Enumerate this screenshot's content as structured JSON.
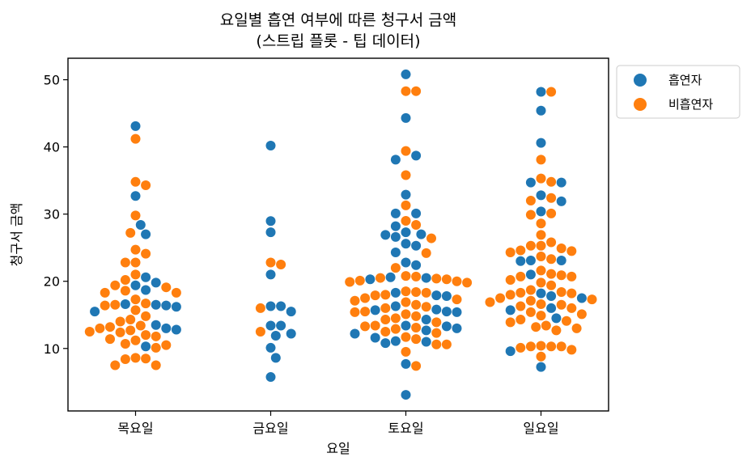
{
  "chart_data": {
    "type": "scatter",
    "style": "swarm",
    "title_line1": "요일별 흡연 여부에 따른 청구서 금액",
    "title_line2": "(스트립 플롯 - 팁 데이터)",
    "xlabel": "요일",
    "ylabel": "청구서 금액",
    "categories": [
      "목요일",
      "금요일",
      "토요일",
      "일요일"
    ],
    "ylim": [
      0.7,
      53.2
    ],
    "yticks": [
      10,
      20,
      30,
      40,
      50
    ],
    "grid": false,
    "legend_position": "outside-top-right",
    "series": [
      {
        "name": "흡연자",
        "color": "#1f77b4",
        "values": [
          [
            43.1,
            32.7,
            28.4,
            27.0,
            20.6,
            19.8,
            19.4,
            18.7,
            16.6,
            16.5,
            16.4,
            16.2,
            15.5,
            13.5,
            13.0,
            12.8,
            10.3
          ],
          [
            40.2,
            28.97,
            27.3,
            21.0,
            16.3,
            16.3,
            15.5,
            13.4,
            13.4,
            12.2,
            11.9,
            10.1,
            8.6,
            5.75
          ],
          [
            50.8,
            44.3,
            38.7,
            38.1,
            32.9,
            30.1,
            30.1,
            28.2,
            27.3,
            27.0,
            26.9,
            26.6,
            25.6,
            25.3,
            24.3,
            22.8,
            22.4,
            20.6,
            20.5,
            20.3,
            18.3,
            17.9,
            17.8,
            16.3,
            15.8,
            15.7,
            15.5,
            15.4,
            14.3,
            13.4,
            13.3,
            13.0,
            12.7,
            12.2,
            11.6,
            11.1,
            11.0,
            10.8,
            7.7,
            3.1
          ],
          [
            48.2,
            45.4,
            40.6,
            34.7,
            34.7,
            32.8,
            31.9,
            30.4,
            23.1,
            23.1,
            23.0,
            21.0,
            18.2,
            17.8,
            17.5,
            16.0,
            15.7,
            14.5,
            9.6,
            7.25
          ]
        ]
      },
      {
        "name": "비흡연자",
        "color": "#ff7f0e",
        "values": [
          [
            41.2,
            34.8,
            34.3,
            29.8,
            27.2,
            24.7,
            24.1,
            22.8,
            22.8,
            21.0,
            20.2,
            19.4,
            19.1,
            18.6,
            18.3,
            18.3,
            17.3,
            16.7,
            16.5,
            16.4,
            15.7,
            14.8,
            14.3,
            14.0,
            13.4,
            13.2,
            13.0,
            12.7,
            12.5,
            12.4,
            12.0,
            11.8,
            11.4,
            11.2,
            10.7,
            10.5,
            10.1,
            8.6,
            8.5,
            8.4,
            7.5,
            7.5
          ],
          [
            22.8,
            22.5,
            16.0,
            12.5
          ],
          [
            48.3,
            48.3,
            39.4,
            35.8,
            31.3,
            29.0,
            28.4,
            26.4,
            24.2,
            22.0,
            20.8,
            20.7,
            20.5,
            20.4,
            20.3,
            20.1,
            20.0,
            19.9,
            19.8,
            18.5,
            18.4,
            18.3,
            18.0,
            17.9,
            17.5,
            17.3,
            17.1,
            16.9,
            16.5,
            16.2,
            16.0,
            15.5,
            15.4,
            15.1,
            14.8,
            14.5,
            14.3,
            13.9,
            13.4,
            13.3,
            13.1,
            12.9,
            12.5,
            12.3,
            11.7,
            11.4,
            10.6,
            10.6,
            9.5,
            7.4
          ],
          [
            48.2,
            38.1,
            35.3,
            34.8,
            32.4,
            32.0,
            30.1,
            29.9,
            28.6,
            26.9,
            25.8,
            25.3,
            25.3,
            24.9,
            24.6,
            24.5,
            24.3,
            23.7,
            23.3,
            21.6,
            21.1,
            20.9,
            20.7,
            20.7,
            20.2,
            19.8,
            19.4,
            18.7,
            18.4,
            18.3,
            18.2,
            18.0,
            17.5,
            17.3,
            17.1,
            16.9,
            16.6,
            16.5,
            16.3,
            16.0,
            15.4,
            15.1,
            14.9,
            14.3,
            14.1,
            13.9,
            13.4,
            13.2,
            13.0,
            12.7,
            10.4,
            10.3,
            10.3,
            10.3,
            10.1,
            9.8,
            8.8
          ]
        ]
      }
    ]
  }
}
